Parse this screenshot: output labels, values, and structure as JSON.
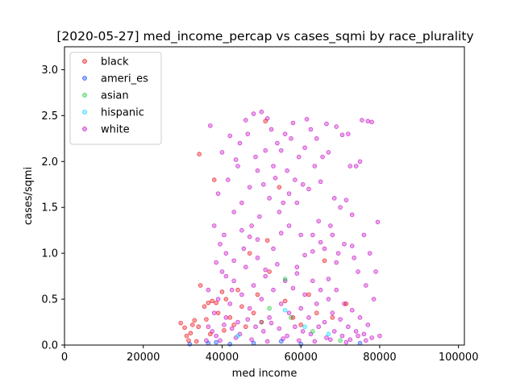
{
  "chart_data": {
    "type": "scatter",
    "title": "[2020-05-27] med_income_percap vs cases_sqmi by race_plurality",
    "xlabel": "med income",
    "ylabel": "cases/sqmi",
    "xlim": [
      0,
      101500
    ],
    "ylim": [
      0,
      3.25
    ],
    "xticks": [
      0,
      20000,
      40000,
      60000,
      80000,
      100000
    ],
    "yticks": [
      0.0,
      0.5,
      1.0,
      1.5,
      2.0,
      2.5,
      3.0
    ],
    "grid": false,
    "legend_position": "top-left",
    "series": [
      {
        "name": "black",
        "color": "#e8000b",
        "points": [
          [
            29500,
            0.24
          ],
          [
            30500,
            0.19
          ],
          [
            31000,
            0.1
          ],
          [
            31500,
            0.05
          ],
          [
            32000,
            0.13
          ],
          [
            32500,
            0.22
          ],
          [
            33000,
            0.27
          ],
          [
            33500,
            0.04
          ],
          [
            34000,
            0.2
          ],
          [
            34200,
            2.08
          ],
          [
            34500,
            0.65
          ],
          [
            35500,
            0.42
          ],
          [
            36000,
            0.28
          ],
          [
            36500,
            0.46
          ],
          [
            37000,
            0.12
          ],
          [
            37500,
            0.48
          ],
          [
            38000,
            1.8
          ],
          [
            38500,
            0.46
          ],
          [
            39000,
            0.35
          ],
          [
            40000,
            0.58
          ],
          [
            40500,
            0.16
          ],
          [
            41000,
            0.5
          ],
          [
            42000,
            0.3
          ],
          [
            43000,
            0.22
          ],
          [
            44000,
            0.6
          ],
          [
            45000,
            0.42
          ],
          [
            46000,
            0.2
          ],
          [
            47000,
            1.0
          ],
          [
            48000,
            0.35
          ],
          [
            49000,
            0.55
          ],
          [
            50000,
            0.25
          ],
          [
            51000,
            2.44
          ],
          [
            51500,
            1.14
          ],
          [
            52000,
            0.8
          ],
          [
            54500,
            1.72
          ],
          [
            56000,
            0.48
          ],
          [
            58000,
            0.3
          ],
          [
            60000,
            0.22
          ],
          [
            62000,
            0.55
          ],
          [
            64000,
            0.35
          ],
          [
            66000,
            0.92
          ],
          [
            68000,
            0.3
          ],
          [
            71500,
            0.45
          ]
        ]
      },
      {
        "name": "ameri_es",
        "color": "#023eff",
        "points": [
          [
            31800,
            0.01
          ],
          [
            36500,
            0.02
          ],
          [
            38500,
            0.03
          ],
          [
            42000,
            0.01
          ],
          [
            48000,
            0.02
          ],
          [
            55000,
            0.04
          ],
          [
            60000,
            0.01
          ],
          [
            75000,
            0.02
          ]
        ]
      },
      {
        "name": "asian",
        "color": "#1ac938",
        "points": [
          [
            52000,
            0.4
          ],
          [
            56000,
            0.72
          ],
          [
            57500,
            0.3
          ],
          [
            63000,
            0.15
          ],
          [
            70000,
            0.05
          ]
        ]
      },
      {
        "name": "hispanic",
        "color": "#00d7ff",
        "points": [
          [
            44000,
            0.1
          ],
          [
            50000,
            0.25
          ],
          [
            56000,
            0.38
          ],
          [
            61000,
            0.2
          ],
          [
            67000,
            0.12
          ]
        ]
      },
      {
        "name": "white",
        "color": "#c400c4",
        "points": [
          [
            36000,
            0.05
          ],
          [
            36500,
            0.6
          ],
          [
            37000,
            2.39
          ],
          [
            38000,
            1.3
          ],
          [
            38500,
            0.9
          ],
          [
            39000,
            1.65
          ],
          [
            39500,
            1.1
          ],
          [
            40000,
            2.1
          ],
          [
            40500,
            1.2
          ],
          [
            41000,
            0.75
          ],
          [
            41500,
            1.8
          ],
          [
            42000,
            2.28
          ],
          [
            42500,
            0.6
          ],
          [
            43000,
            1.45
          ],
          [
            43500,
            2.02
          ],
          [
            44000,
            1.95
          ],
          [
            44500,
            2.2
          ],
          [
            45000,
            1.55
          ],
          [
            45500,
            1.05
          ],
          [
            46000,
            2.45
          ],
          [
            46500,
            2.3
          ],
          [
            47000,
            1.72
          ],
          [
            47500,
            1.3
          ],
          [
            48000,
            2.52
          ],
          [
            48500,
            2.05
          ],
          [
            49000,
            1.9
          ],
          [
            49500,
            1.4
          ],
          [
            50000,
            2.54
          ],
          [
            50500,
            1.75
          ],
          [
            51000,
            2.12
          ],
          [
            51500,
            2.47
          ],
          [
            52000,
            1.6
          ],
          [
            52500,
            2.35
          ],
          [
            53000,
            1.95
          ],
          [
            53500,
            1.82
          ],
          [
            54000,
            2.2
          ],
          [
            54500,
            1.45
          ],
          [
            55000,
            2.12
          ],
          [
            55500,
            1.55
          ],
          [
            56000,
            2.3
          ],
          [
            56500,
            1.9
          ],
          [
            57000,
            1.65
          ],
          [
            57500,
            2.25
          ],
          [
            58000,
            2.42
          ],
          [
            58500,
            1.8
          ],
          [
            59000,
            1.55
          ],
          [
            59500,
            2.05
          ],
          [
            60000,
            1.2
          ],
          [
            60500,
            1.75
          ],
          [
            61000,
            2.15
          ],
          [
            61500,
            2.46
          ],
          [
            62000,
            1.7
          ],
          [
            62500,
            2.35
          ],
          [
            63000,
            1.2
          ],
          [
            63500,
            1.95
          ],
          [
            64000,
            2.25
          ],
          [
            64500,
            1.35
          ],
          [
            65000,
            1.78
          ],
          [
            65500,
            2.05
          ],
          [
            66000,
            1.05
          ],
          [
            66500,
            2.41
          ],
          [
            67000,
            2.1
          ],
          [
            67500,
            1.3
          ],
          [
            68000,
            1.2
          ],
          [
            68500,
            1.6
          ],
          [
            69000,
            2.38
          ],
          [
            69500,
            1.0
          ],
          [
            70000,
            1.5
          ],
          [
            70500,
            2.29
          ],
          [
            71000,
            1.1
          ],
          [
            71500,
            1.58
          ],
          [
            72000,
            2.3
          ],
          [
            72500,
            1.95
          ],
          [
            73000,
            1.42
          ],
          [
            73500,
            0.95
          ],
          [
            74000,
            1.95
          ],
          [
            74500,
            0.8
          ],
          [
            75000,
            2.0
          ],
          [
            75500,
            2.45
          ],
          [
            76000,
            1.2
          ],
          [
            76500,
            0.65
          ],
          [
            77000,
            2.44
          ],
          [
            77500,
            1.0
          ],
          [
            78000,
            2.43
          ],
          [
            78500,
            0.5
          ],
          [
            79000,
            0.8
          ],
          [
            79500,
            1.34
          ],
          [
            80000,
            0.1
          ],
          [
            37500,
            0.15
          ],
          [
            38000,
            0.35
          ],
          [
            39000,
            0.5
          ],
          [
            40000,
            0.8
          ],
          [
            41000,
            0.3
          ],
          [
            42000,
            0.45
          ],
          [
            43000,
            0.7
          ],
          [
            44000,
            0.25
          ],
          [
            45000,
            0.55
          ],
          [
            46000,
            0.85
          ],
          [
            47000,
            0.4
          ],
          [
            48000,
            0.65
          ],
          [
            49000,
            0.95
          ],
          [
            50000,
            0.5
          ],
          [
            51000,
            0.75
          ],
          [
            52000,
            0.3
          ],
          [
            53000,
            0.6
          ],
          [
            54000,
            0.88
          ],
          [
            55000,
            0.45
          ],
          [
            56000,
            0.7
          ],
          [
            57000,
            0.35
          ],
          [
            58000,
            0.62
          ],
          [
            59000,
            0.85
          ],
          [
            60000,
            0.4
          ],
          [
            61000,
            0.55
          ],
          [
            62000,
            0.3
          ],
          [
            63000,
            0.7
          ],
          [
            64000,
            0.45
          ],
          [
            65000,
            0.6
          ],
          [
            66000,
            0.25
          ],
          [
            67000,
            0.5
          ],
          [
            68000,
            0.35
          ],
          [
            69000,
            0.6
          ],
          [
            70000,
            0.28
          ],
          [
            71000,
            0.45
          ],
          [
            72000,
            0.2
          ],
          [
            73000,
            0.38
          ],
          [
            74000,
            0.15
          ],
          [
            75000,
            0.3
          ],
          [
            76000,
            0.12
          ],
          [
            77000,
            0.22
          ],
          [
            78000,
            0.08
          ],
          [
            36500,
            0.2
          ],
          [
            38500,
            0.1
          ],
          [
            40500,
            0.22
          ],
          [
            42500,
            0.18
          ],
          [
            44500,
            0.12
          ],
          [
            46500,
            0.28
          ],
          [
            48500,
            0.2
          ],
          [
            50500,
            0.15
          ],
          [
            52500,
            0.24
          ],
          [
            54500,
            0.18
          ],
          [
            56500,
            0.1
          ],
          [
            58500,
            0.2
          ],
          [
            60500,
            0.15
          ],
          [
            62500,
            0.12
          ],
          [
            64500,
            0.2
          ],
          [
            66500,
            0.08
          ],
          [
            68500,
            0.15
          ],
          [
            70500,
            0.1
          ],
          [
            72500,
            0.06
          ],
          [
            74500,
            0.1
          ],
          [
            76500,
            0.05
          ],
          [
            39500,
            0.05
          ],
          [
            43500,
            0.08
          ],
          [
            47500,
            0.06
          ],
          [
            51500,
            0.04
          ],
          [
            55500,
            0.07
          ],
          [
            59500,
            0.05
          ],
          [
            63500,
            0.04
          ],
          [
            67500,
            0.06
          ],
          [
            71500,
            0.03
          ],
          [
            41000,
            1.0
          ],
          [
            45000,
            1.25
          ],
          [
            49000,
            1.15
          ],
          [
            53000,
            1.05
          ],
          [
            57000,
            1.3
          ],
          [
            61000,
            0.98
          ],
          [
            65000,
            1.12
          ],
          [
            69000,
            0.9
          ],
          [
            73000,
            1.08
          ],
          [
            43000,
            0.92
          ],
          [
            47000,
            1.18
          ],
          [
            51000,
            0.82
          ],
          [
            55000,
            1.22
          ],
          [
            59000,
            0.78
          ],
          [
            63000,
            1.02
          ],
          [
            67000,
            0.72
          ]
        ]
      }
    ]
  }
}
